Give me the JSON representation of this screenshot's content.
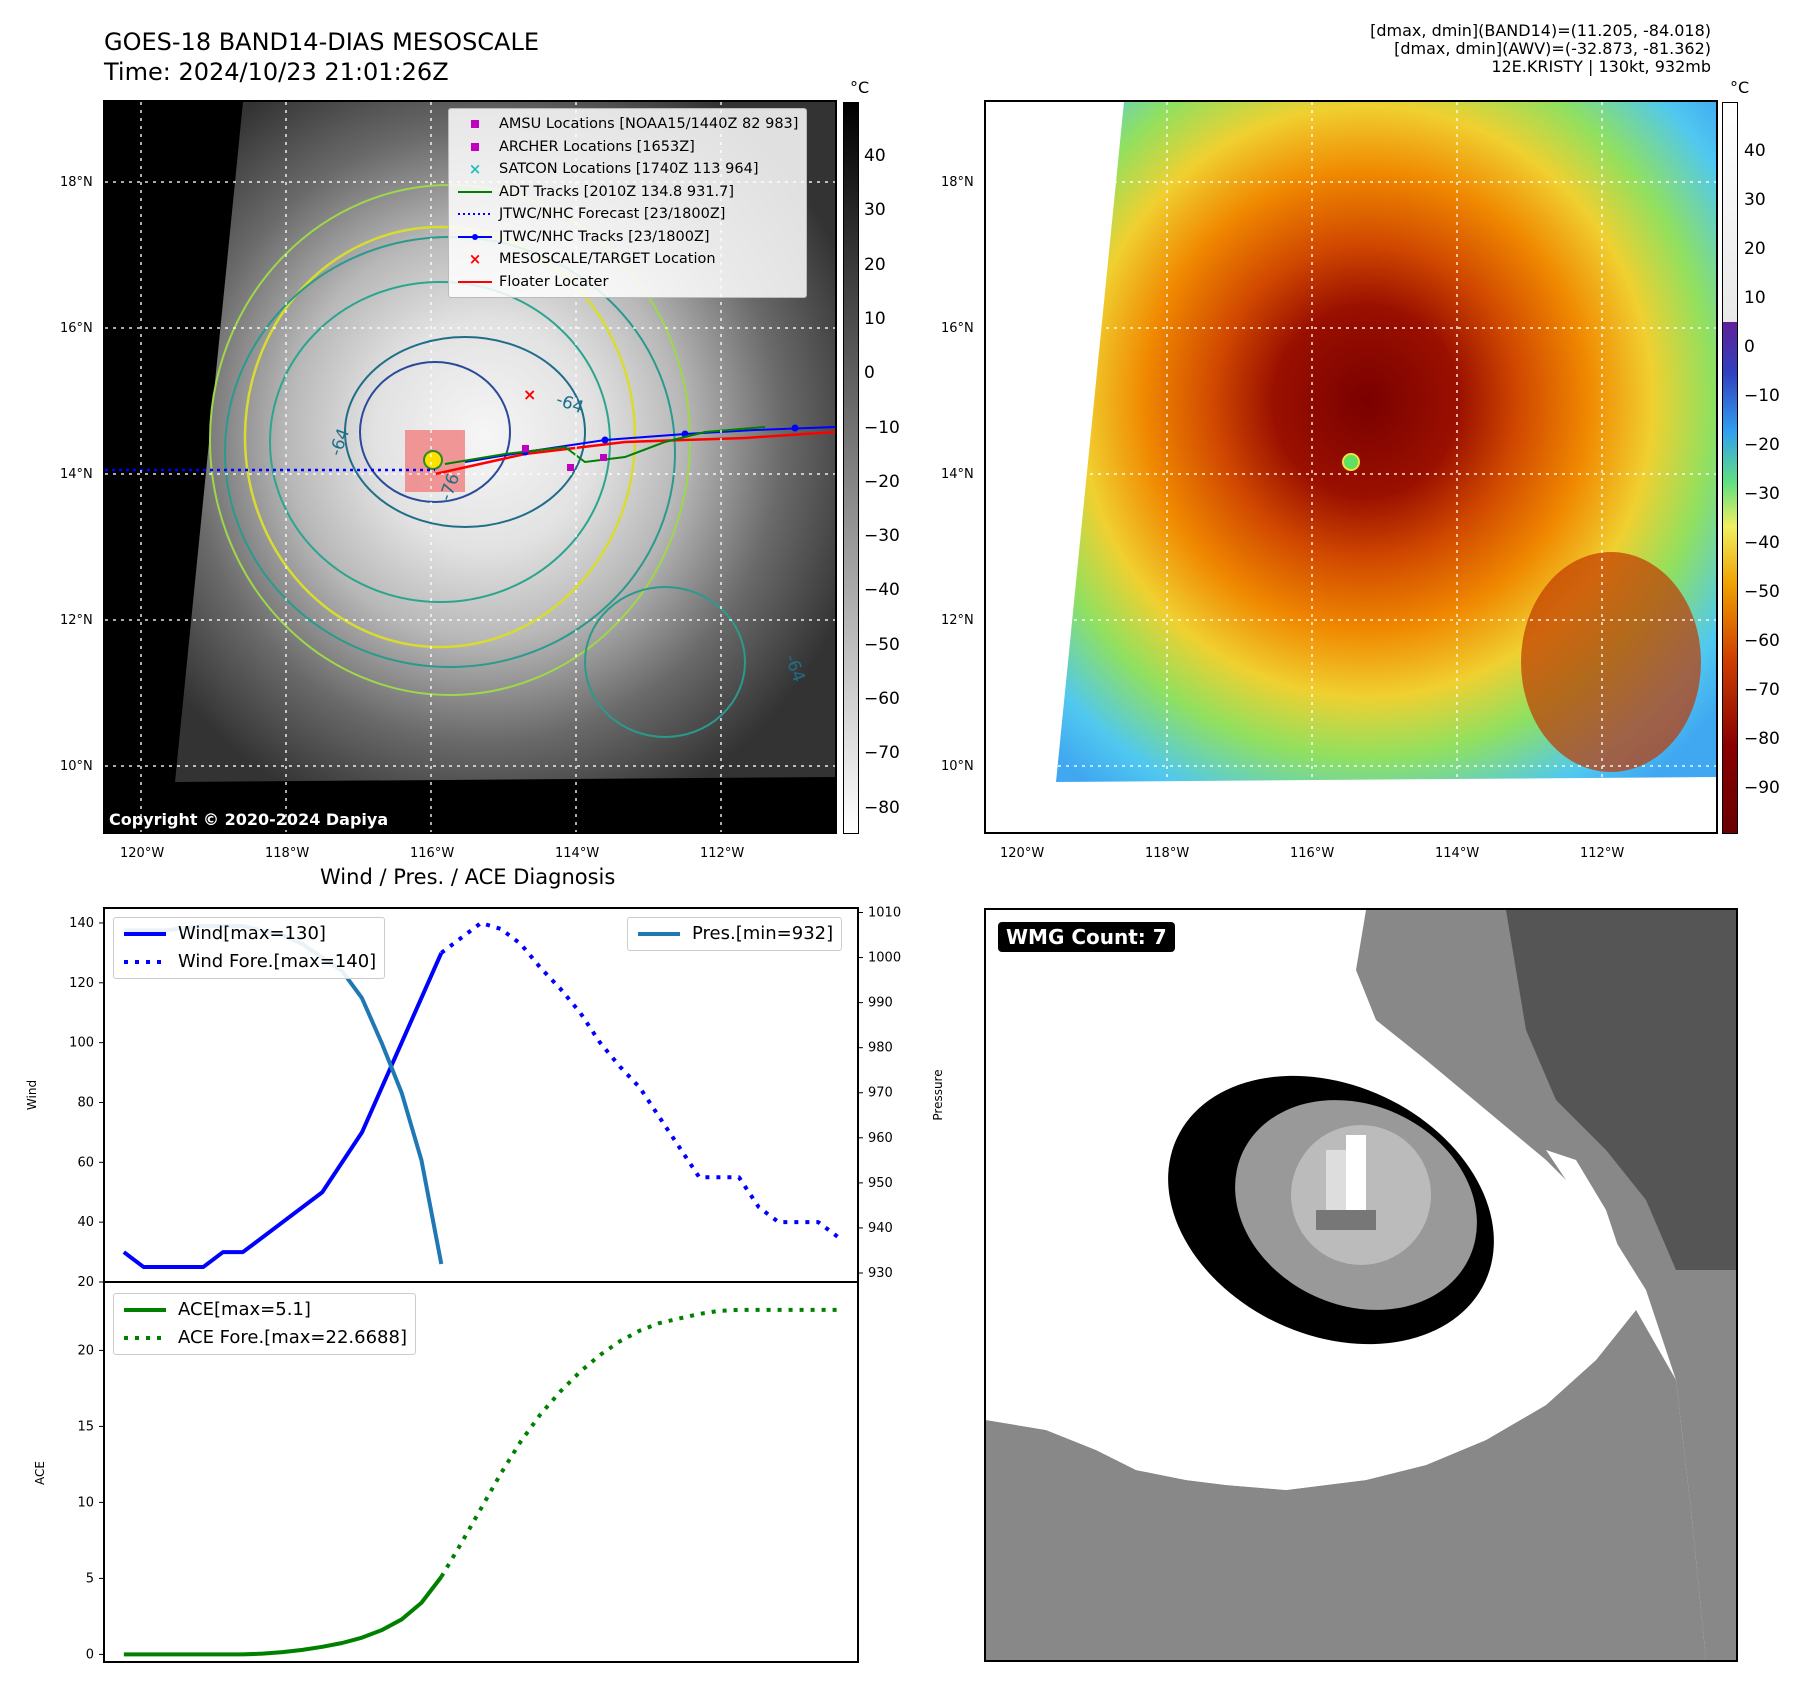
{
  "header": {
    "title_line1": "GOES-18 BAND14-DIAS MESOSCALE",
    "title_line2": "Time: 2024/10/23 21:01:26Z",
    "info_line1": "[dmax, dmin](BAND14)=(11.205, -84.018)",
    "info_line2": "[dmax, dmin](AWV)=(-32.873, -81.362)",
    "info_line3": "12E.KRISTY | 130kt, 932mb"
  },
  "map": {
    "lat_labels": [
      "18°N",
      "16°N",
      "14°N",
      "12°N",
      "10°N"
    ],
    "lon_labels": [
      "120°W",
      "118°W",
      "116°W",
      "114°W",
      "112°W"
    ],
    "copyright": "Copyright © 2020-2024 Dapiya",
    "contour_labels": [
      "-64",
      "-64",
      "-76",
      "-64"
    ]
  },
  "colorbar_gray": {
    "unit": "°C",
    "ticks": [
      "40",
      "30",
      "20",
      "10",
      "0",
      "−10",
      "−20",
      "−30",
      "−40",
      "−50",
      "−60",
      "−70",
      "−80"
    ]
  },
  "colorbar_color": {
    "unit": "°C",
    "ticks": [
      "40",
      "30",
      "20",
      "10",
      "0",
      "−10",
      "−20",
      "−30",
      "−40",
      "−50",
      "−60",
      "−70",
      "−80",
      "−90"
    ]
  },
  "legend": [
    {
      "label": "AMSU Locations [NOAA15/1440Z 82 983]",
      "symbol": "square",
      "color": "#c000c0"
    },
    {
      "label": "ARCHER Locations [1653Z]",
      "symbol": "square",
      "color": "#c000c0"
    },
    {
      "label": "SATCON Locations [1740Z 113 964]",
      "symbol": "x",
      "color": "#20c0c0"
    },
    {
      "label": "ADT Tracks [2010Z 134.8 931.7]",
      "symbol": "line",
      "color": "#008000"
    },
    {
      "label": "JTWC/NHC Forecast [23/1800Z]",
      "symbol": "dotted",
      "color": "#0000ff"
    },
    {
      "label": "JTWC/NHC Tracks [23/1800Z]",
      "symbol": "line-dot",
      "color": "#0000ff"
    },
    {
      "label": "MESOSCALE/TARGET Location",
      "symbol": "x",
      "color": "#ff0000"
    },
    {
      "label": "Floater Locater",
      "symbol": "line",
      "color": "#ff0000"
    }
  ],
  "diag_title": "Wind / Pres. / ACE Diagnosis",
  "wmg_label": "WMG Count: 7",
  "chart_data": [
    {
      "type": "line",
      "title": "Wind / Pres. / ACE Diagnosis",
      "ylabel": "Wind",
      "y2label": "Pressure",
      "ylim": [
        20,
        145
      ],
      "y2lim": [
        928,
        1011
      ],
      "yticks": [
        "20",
        "40",
        "60",
        "80",
        "100",
        "120",
        "140"
      ],
      "y2ticks": [
        "930",
        "940",
        "950",
        "960",
        "970",
        "980",
        "990",
        "1000",
        "1010"
      ],
      "legend_left": [
        "Wind[max=130]",
        "Wind Fore.[max=140]"
      ],
      "legend_right": [
        "Pres.[min=932]"
      ],
      "series": [
        {
          "name": "Wind[max=130]",
          "color": "#0000ff",
          "style": "solid",
          "x": [
            0,
            1,
            2,
            3,
            4,
            5,
            6,
            8,
            10,
            12,
            14,
            15,
            16
          ],
          "values": [
            30,
            25,
            25,
            25,
            25,
            30,
            30,
            40,
            50,
            70,
            100,
            115,
            130
          ]
        },
        {
          "name": "Wind Fore.[max=140]",
          "color": "#0000ff",
          "style": "dotted",
          "x": [
            16,
            17,
            18,
            19,
            20,
            21,
            22,
            23,
            24,
            25,
            26,
            27,
            28,
            29,
            30,
            31,
            32,
            33,
            34,
            35,
            36
          ],
          "values": [
            130,
            135,
            140,
            138,
            133,
            125,
            118,
            110,
            100,
            92,
            85,
            75,
            65,
            55,
            55,
            55,
            45,
            40,
            40,
            40,
            35
          ]
        },
        {
          "name": "Pres.[min=932]",
          "color": "#1f77b4",
          "style": "solid",
          "axis": "y2",
          "x": [
            0,
            1,
            2,
            3,
            4,
            5,
            6,
            7,
            8,
            9,
            10,
            11,
            12,
            13,
            14,
            15,
            16
          ],
          "values": [
            1006,
            1006,
            1006,
            1006.5,
            1007,
            1007,
            1007,
            1006,
            1005,
            1003,
            1000,
            997,
            991,
            981,
            970,
            955,
            932
          ]
        }
      ]
    },
    {
      "type": "line",
      "ylabel": "ACE",
      "ylim": [
        -0.5,
        24.5
      ],
      "yticks": [
        "0",
        "5",
        "10",
        "15",
        "20"
      ],
      "legend_left": [
        "ACE[max=5.1]",
        "ACE Fore.[max=22.6688]"
      ],
      "series": [
        {
          "name": "ACE[max=5.1]",
          "color": "#008000",
          "style": "solid",
          "x": [
            0,
            1,
            2,
            3,
            4,
            5,
            6,
            7,
            8,
            9,
            10,
            11,
            12,
            13,
            14,
            15,
            16
          ],
          "values": [
            0,
            0,
            0,
            0,
            0,
            0,
            0,
            0.05,
            0.15,
            0.3,
            0.5,
            0.75,
            1.1,
            1.6,
            2.3,
            3.4,
            5.1
          ]
        },
        {
          "name": "ACE Fore.[max=22.6688]",
          "color": "#008000",
          "style": "dotted",
          "x": [
            16,
            17,
            18,
            19,
            20,
            21,
            22,
            23,
            24,
            25,
            26,
            27,
            28,
            29,
            30,
            31,
            32,
            33,
            34,
            35,
            36
          ],
          "values": [
            5.1,
            7.3,
            9.6,
            11.9,
            14.0,
            15.8,
            17.3,
            18.6,
            19.7,
            20.6,
            21.3,
            21.8,
            22.1,
            22.4,
            22.6,
            22.67,
            22.67,
            22.67,
            22.67,
            22.67,
            22.67
          ]
        }
      ]
    }
  ]
}
